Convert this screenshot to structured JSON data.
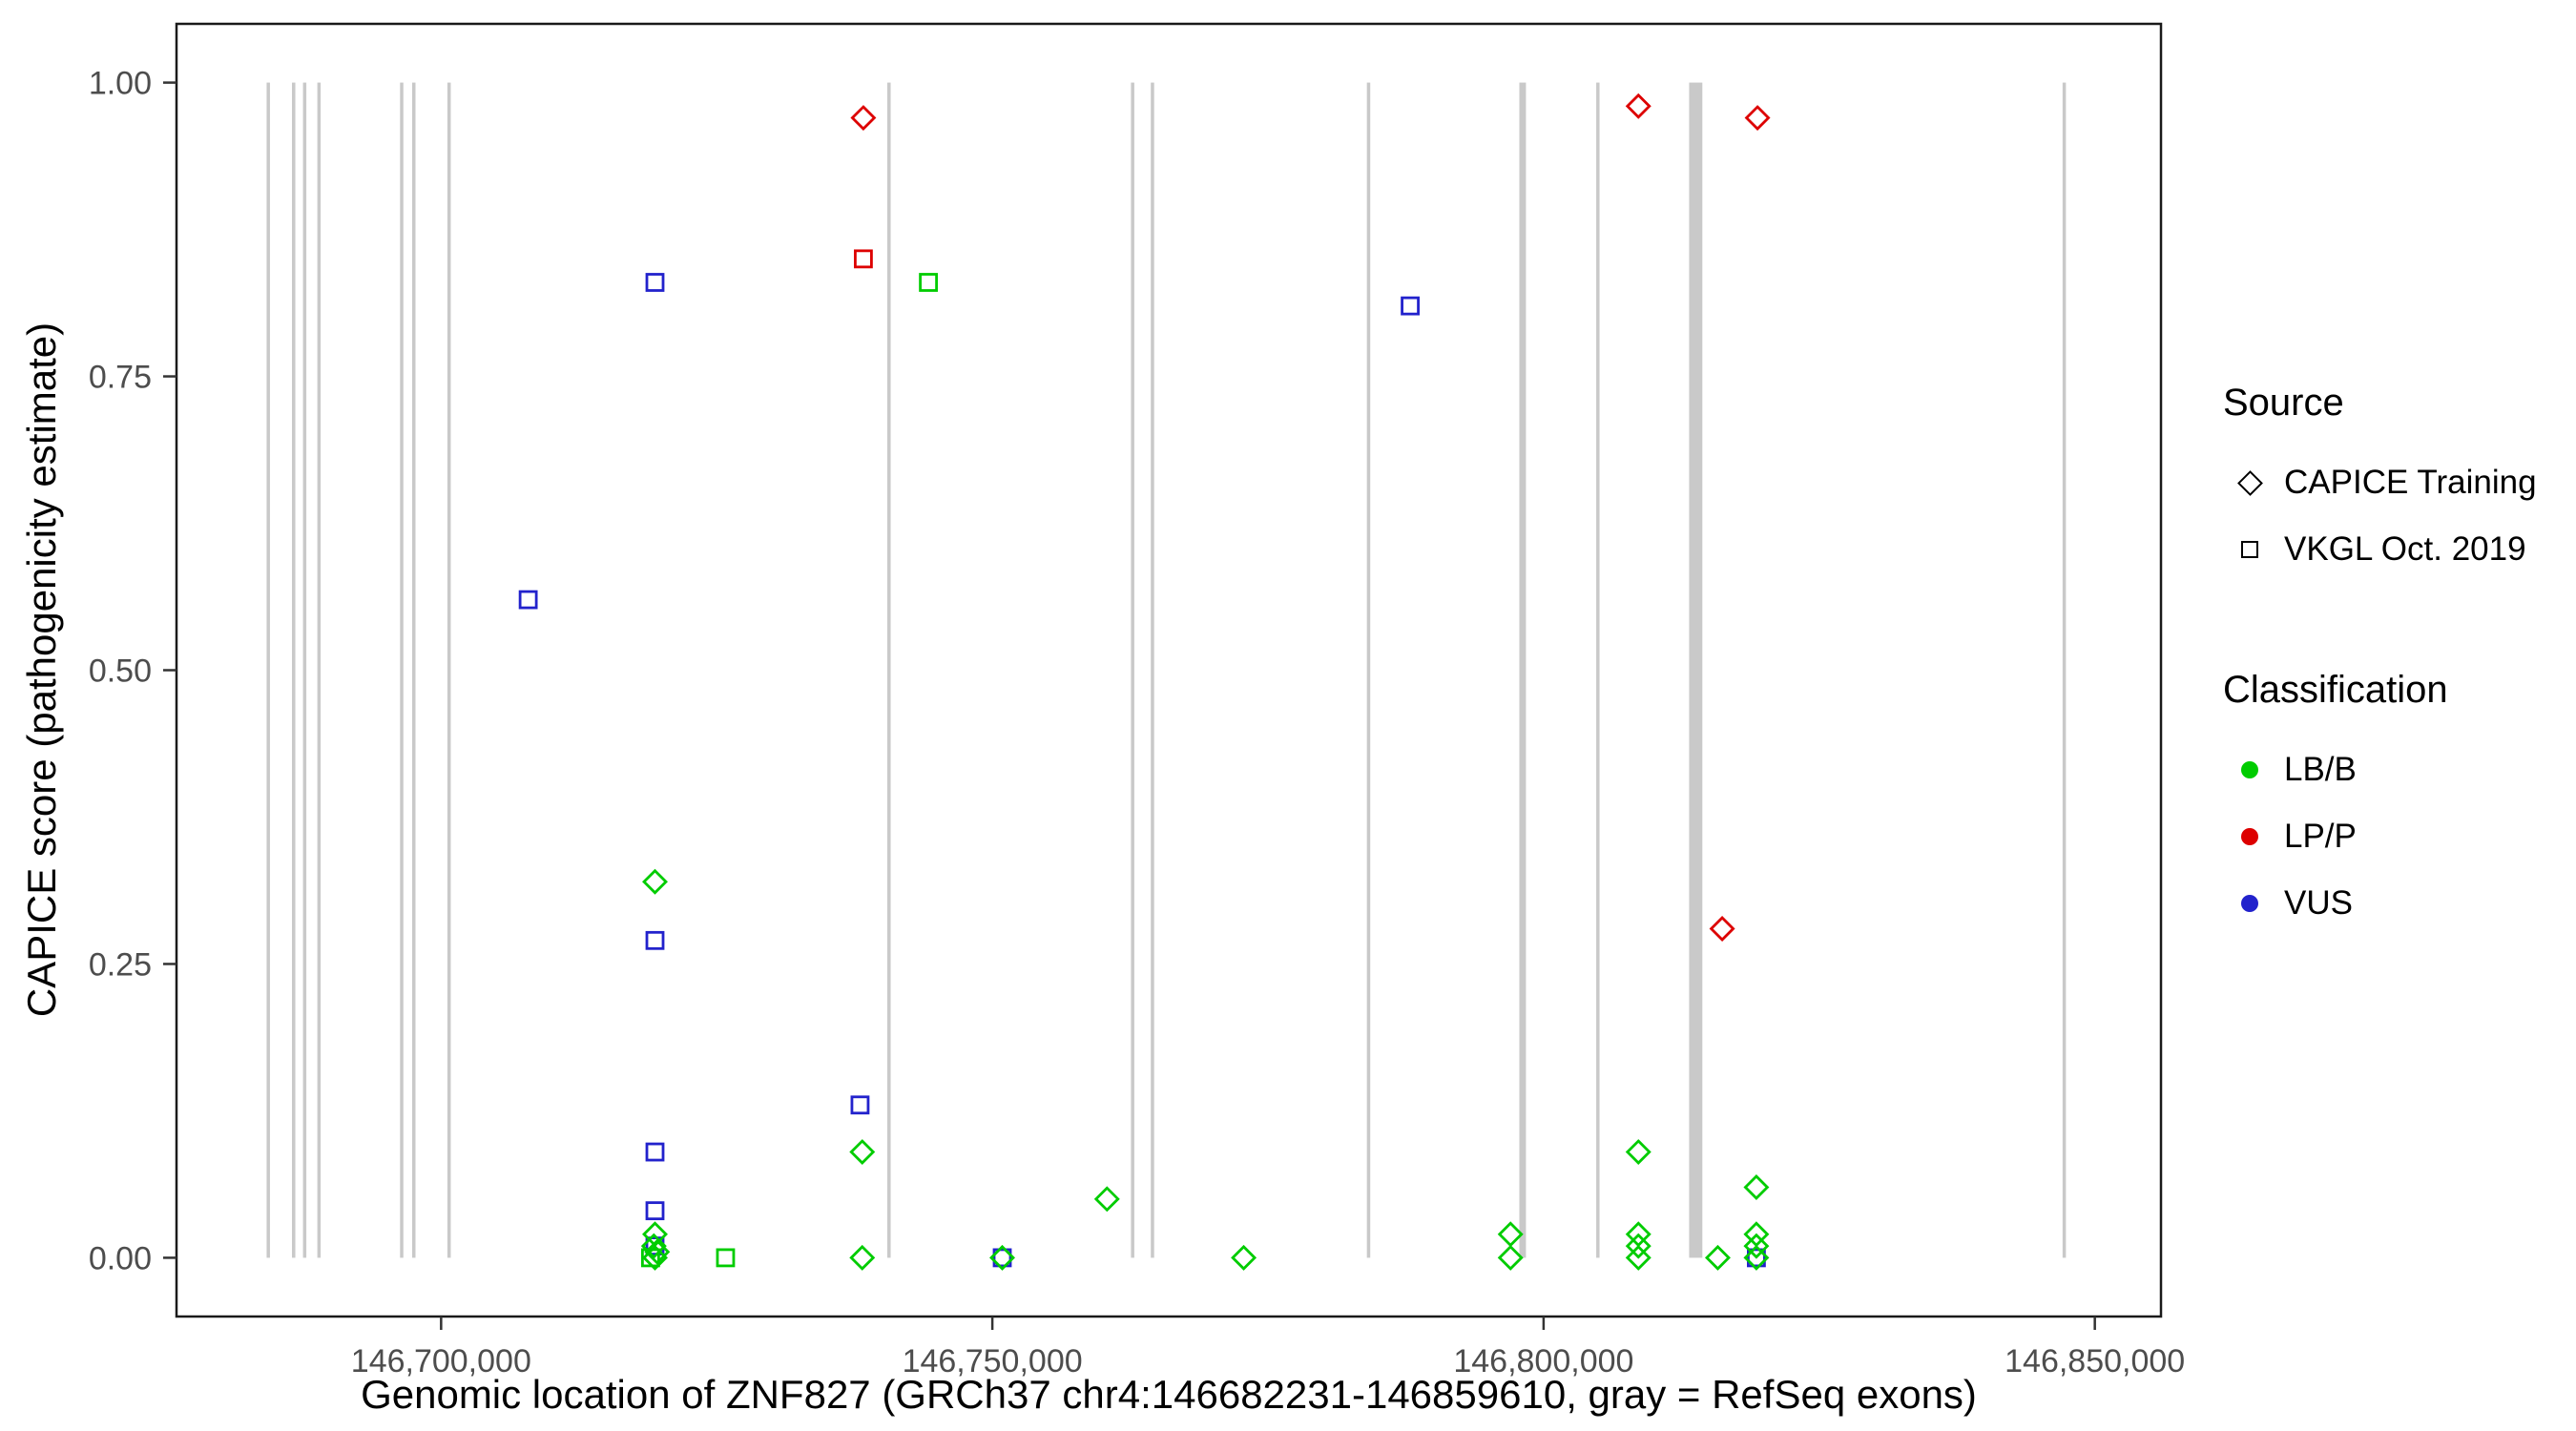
{
  "chart_data": {
    "type": "scatter",
    "title": "",
    "xlabel": "Genomic location of ZNF827 (GRCh37 chr4:146682231-146859610, gray = RefSeq exons)",
    "ylabel": "CAPICE score (pathogenicity estimate)",
    "x_domain": [
      146676000,
      146856000
    ],
    "y_domain": [
      -0.05,
      1.05
    ],
    "grid": false,
    "x_ticks": [
      {
        "value": 146700000,
        "label": "146,700,000"
      },
      {
        "value": 146750000,
        "label": "146,750,000"
      },
      {
        "value": 146800000,
        "label": "146,800,000"
      },
      {
        "value": 146850000,
        "label": "146,850,000"
      }
    ],
    "y_ticks": [
      {
        "value": 0.0,
        "label": "0.00"
      },
      {
        "value": 0.25,
        "label": "0.25"
      },
      {
        "value": 0.5,
        "label": "0.50"
      },
      {
        "value": 0.75,
        "label": "0.75"
      },
      {
        "value": 1.0,
        "label": "1.00"
      }
    ],
    "exons": {
      "color": "#c9c9c9",
      "note": "gray = RefSeq exons",
      "regions": [
        [
          146684200,
          146684450
        ],
        [
          146686500,
          146686750
        ],
        [
          146687500,
          146687750
        ],
        [
          146688800,
          146689050
        ],
        [
          146696300,
          146696550
        ],
        [
          146697400,
          146697650
        ],
        [
          146700600,
          146700850
        ],
        [
          146740500,
          146740750
        ],
        [
          146762600,
          146762850
        ],
        [
          146764400,
          146764650
        ],
        [
          146784000,
          146784250
        ],
        [
          146797800,
          146798400
        ],
        [
          146804800,
          146805050
        ],
        [
          146813200,
          146814400
        ],
        [
          146847100,
          146847350
        ]
      ]
    },
    "classification_colors": {
      "LB/B": "#00cc00",
      "LP/P": "#dd0000",
      "VUS": "#2222cc"
    },
    "source_shapes": {
      "CAPICE Training": "diamond",
      "VKGL Oct. 2019": "square"
    },
    "points": [
      {
        "source": "CAPICE Training",
        "classification": "LP/P",
        "pos": 146738300,
        "score": 0.97
      },
      {
        "source": "CAPICE Training",
        "classification": "LP/P",
        "pos": 146808600,
        "score": 0.98
      },
      {
        "source": "CAPICE Training",
        "classification": "LP/P",
        "pos": 146819400,
        "score": 0.97
      },
      {
        "source": "CAPICE Training",
        "classification": "LP/P",
        "pos": 146816200,
        "score": 0.28
      },
      {
        "source": "VKGL Oct. 2019",
        "classification": "LP/P",
        "pos": 146738300,
        "score": 0.85
      },
      {
        "source": "VKGL Oct. 2019",
        "classification": "VUS",
        "pos": 146719400,
        "score": 0.83
      },
      {
        "source": "VKGL Oct. 2019",
        "classification": "VUS",
        "pos": 146707900,
        "score": 0.56
      },
      {
        "source": "VKGL Oct. 2019",
        "classification": "VUS",
        "pos": 146787900,
        "score": 0.81
      },
      {
        "source": "VKGL Oct. 2019",
        "classification": "VUS",
        "pos": 146719400,
        "score": 0.27
      },
      {
        "source": "VKGL Oct. 2019",
        "classification": "VUS",
        "pos": 146738000,
        "score": 0.13
      },
      {
        "source": "VKGL Oct. 2019",
        "classification": "VUS",
        "pos": 146719400,
        "score": 0.09
      },
      {
        "source": "VKGL Oct. 2019",
        "classification": "VUS",
        "pos": 146719400,
        "score": 0.04
      },
      {
        "source": "VKGL Oct. 2019",
        "classification": "VUS",
        "pos": 146719400,
        "score": 0.01
      },
      {
        "source": "VKGL Oct. 2019",
        "classification": "VUS",
        "pos": 146750900,
        "score": 0.0
      },
      {
        "source": "VKGL Oct. 2019",
        "classification": "VUS",
        "pos": 146819300,
        "score": 0.0
      },
      {
        "source": "VKGL Oct. 2019",
        "classification": "LB/B",
        "pos": 146744200,
        "score": 0.83
      },
      {
        "source": "VKGL Oct. 2019",
        "classification": "LB/B",
        "pos": 146725800,
        "score": 0.0
      },
      {
        "source": "VKGL Oct. 2019",
        "classification": "LB/B",
        "pos": 146719000,
        "score": 0.0
      },
      {
        "source": "CAPICE Training",
        "classification": "LB/B",
        "pos": 146719400,
        "score": 0.32
      },
      {
        "source": "CAPICE Training",
        "classification": "LB/B",
        "pos": 146738200,
        "score": 0.09
      },
      {
        "source": "CAPICE Training",
        "classification": "LB/B",
        "pos": 146760400,
        "score": 0.05
      },
      {
        "source": "CAPICE Training",
        "classification": "LB/B",
        "pos": 146808600,
        "score": 0.09
      },
      {
        "source": "CAPICE Training",
        "classification": "LB/B",
        "pos": 146819300,
        "score": 0.06
      },
      {
        "source": "CAPICE Training",
        "classification": "LB/B",
        "pos": 146719400,
        "score": 0.02
      },
      {
        "source": "CAPICE Training",
        "classification": "LB/B",
        "pos": 146797000,
        "score": 0.02
      },
      {
        "source": "CAPICE Training",
        "classification": "LB/B",
        "pos": 146808600,
        "score": 0.02
      },
      {
        "source": "CAPICE Training",
        "classification": "LB/B",
        "pos": 146819300,
        "score": 0.02
      },
      {
        "source": "CAPICE Training",
        "classification": "LB/B",
        "pos": 146772800,
        "score": 0.0
      },
      {
        "source": "CAPICE Training",
        "classification": "LB/B",
        "pos": 146738200,
        "score": 0.0
      },
      {
        "source": "CAPICE Training",
        "classification": "LB/B",
        "pos": 146719300,
        "score": 0.01
      },
      {
        "source": "CAPICE Training",
        "classification": "LB/B",
        "pos": 146719400,
        "score": 0.0
      },
      {
        "source": "CAPICE Training",
        "classification": "LB/B",
        "pos": 146719600,
        "score": 0.005
      },
      {
        "source": "CAPICE Training",
        "classification": "LB/B",
        "pos": 146797000,
        "score": 0.0
      },
      {
        "source": "CAPICE Training",
        "classification": "LB/B",
        "pos": 146808600,
        "score": 0.01
      },
      {
        "source": "CAPICE Training",
        "classification": "LB/B",
        "pos": 146808600,
        "score": 0.0
      },
      {
        "source": "CAPICE Training",
        "classification": "LB/B",
        "pos": 146815800,
        "score": 0.0
      },
      {
        "source": "CAPICE Training",
        "classification": "LB/B",
        "pos": 146819300,
        "score": 0.01
      },
      {
        "source": "CAPICE Training",
        "classification": "LB/B",
        "pos": 146750900,
        "score": 0.0
      },
      {
        "source": "CAPICE Training",
        "classification": "LB/B",
        "pos": 146819300,
        "score": 0.0
      }
    ]
  },
  "legend": {
    "source": {
      "title": "Source",
      "items": [
        {
          "label": "CAPICE Training",
          "shape": "diamond"
        },
        {
          "label": "VKGL Oct. 2019",
          "shape": "square"
        }
      ]
    },
    "classification": {
      "title": "Classification",
      "items": [
        {
          "label": "LB/B",
          "color": "#00cc00"
        },
        {
          "label": "LP/P",
          "color": "#dd0000"
        },
        {
          "label": "VUS",
          "color": "#2222cc"
        }
      ]
    }
  }
}
